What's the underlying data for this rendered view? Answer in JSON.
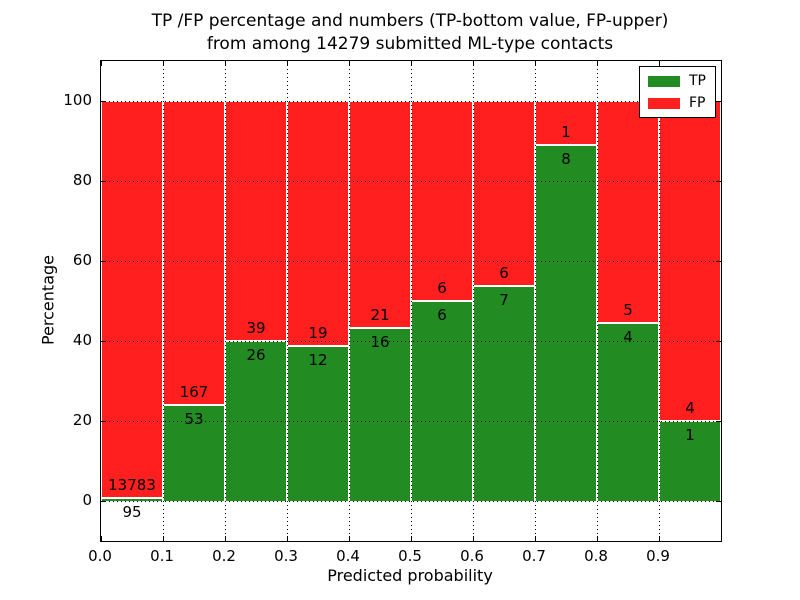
{
  "chart_data": {
    "type": "bar",
    "stacked": true,
    "normalized_to": "percent_of_bin_total",
    "title_line1": "TP /FP percentage and numbers (TP-bottom value, FP-upper)",
    "title_line2": "from among 14279 submitted ML-type contacts",
    "total_submitted": 14279,
    "xlabel": "Predicted probability",
    "ylabel": "Percentage",
    "bin_edges": [
      0.0,
      0.1,
      0.2,
      0.3,
      0.4,
      0.5,
      0.6,
      0.7,
      0.8,
      0.9,
      1.0
    ],
    "series": [
      {
        "name": "TP",
        "color": "#228B22",
        "values": [
          95,
          53,
          26,
          12,
          16,
          6,
          7,
          8,
          4,
          1
        ]
      },
      {
        "name": "FP",
        "color": "#FF1F1F",
        "values": [
          13783,
          167,
          39,
          19,
          21,
          6,
          6,
          1,
          5,
          4
        ]
      }
    ],
    "xticks": [
      "0.0",
      "0.1",
      "0.2",
      "0.3",
      "0.4",
      "0.5",
      "0.6",
      "0.7",
      "0.8",
      "0.9"
    ],
    "yticks": [
      0,
      20,
      40,
      60,
      80,
      100
    ],
    "xlim": [
      0.0,
      1.0
    ],
    "ylim": [
      -10,
      110
    ],
    "grid": true,
    "grid_style": "dotted-black",
    "legend_position": "upper right",
    "legend_entries": [
      "TP",
      "FP"
    ]
  }
}
